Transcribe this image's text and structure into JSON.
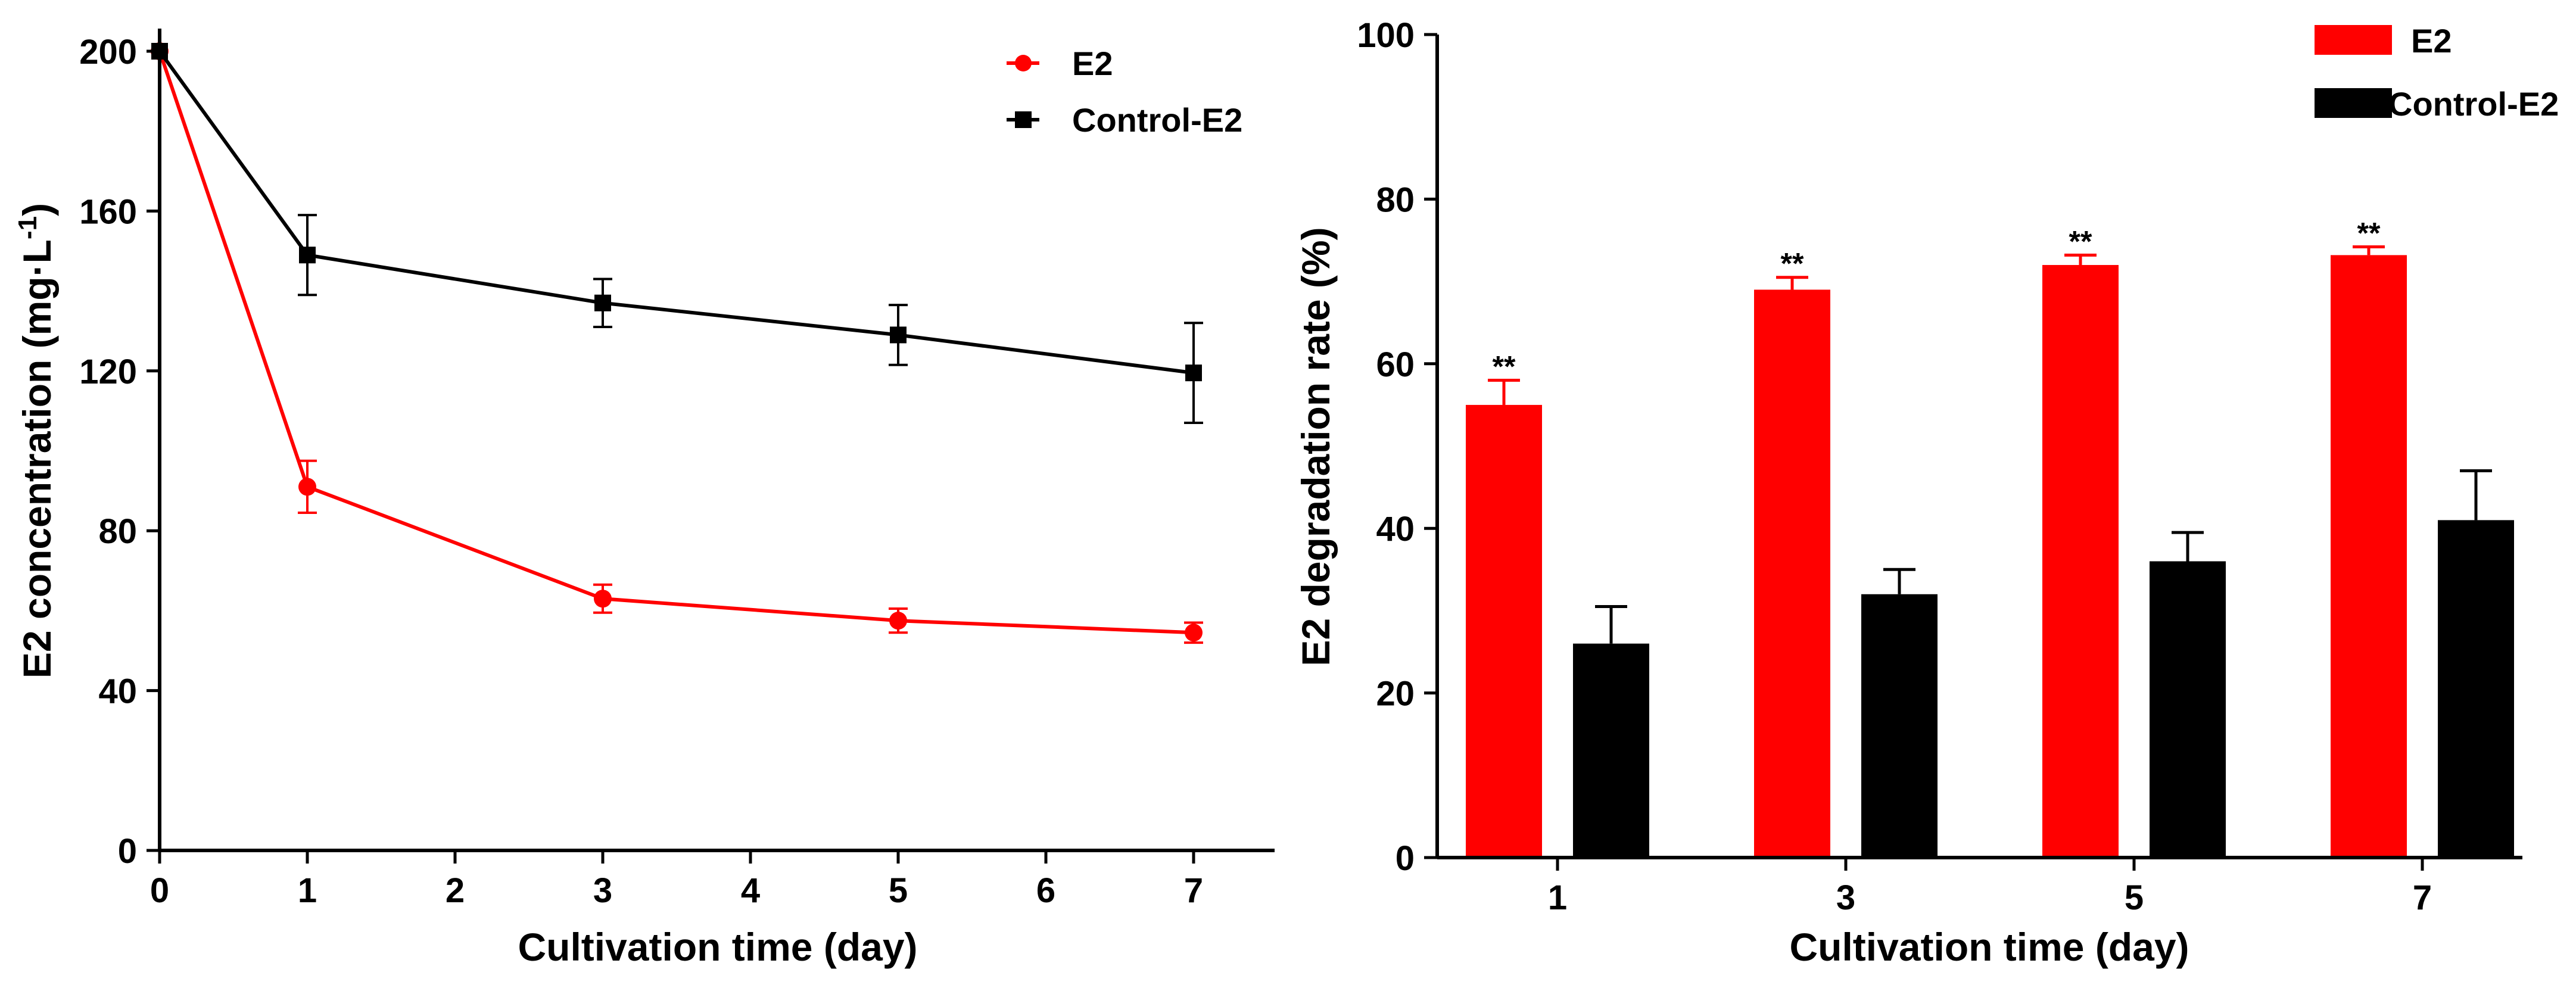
{
  "chart_data": [
    {
      "type": "line",
      "xlabel": "Cultivation time (day)",
      "ylabel": "E2 concentration (mg·L",
      "ylabel_sup": "-1",
      "ylabel_close": ")",
      "xlim": [
        0,
        7.5
      ],
      "ylim": [
        0,
        200
      ],
      "xticks": [
        0,
        1,
        2,
        3,
        4,
        5,
        6,
        7
      ],
      "yticks": [
        0,
        40,
        80,
        120,
        160,
        200
      ],
      "legend_position": "top-right",
      "series": [
        {
          "name": "E2",
          "color": "#ff0000",
          "marker": "circle",
          "x": [
            0,
            1,
            3,
            5,
            7
          ],
          "y": [
            200,
            91,
            63,
            57.5,
            54.5
          ],
          "err": [
            0,
            6.5,
            3.5,
            3,
            2.5
          ]
        },
        {
          "name": "Control-E2",
          "color": "#000000",
          "marker": "square",
          "x": [
            0,
            1,
            3,
            5,
            7
          ],
          "y": [
            200,
            149,
            137,
            129,
            119.5
          ],
          "err": [
            0,
            10,
            6,
            7.5,
            12.5
          ]
        }
      ]
    },
    {
      "type": "bar",
      "xlabel": "Cultivation time (day)",
      "ylabel": "E2 degradation rate (%)",
      "ylim": [
        0,
        100
      ],
      "yticks": [
        0,
        20,
        40,
        60,
        80,
        100
      ],
      "categories": [
        "1",
        "3",
        "5",
        "7"
      ],
      "legend_position": "top-right",
      "series": [
        {
          "name": "E2",
          "color": "#ff0000",
          "values": [
            55,
            69,
            72,
            73.2
          ],
          "err": [
            3,
            1.5,
            1.2,
            1
          ]
        },
        {
          "name": "Control-E2",
          "color": "#000000",
          "values": [
            26,
            32,
            36,
            41
          ],
          "err": [
            4.5,
            3,
            3.5,
            6
          ]
        }
      ],
      "annotations": [
        "**",
        "**",
        "**",
        "**"
      ]
    }
  ]
}
